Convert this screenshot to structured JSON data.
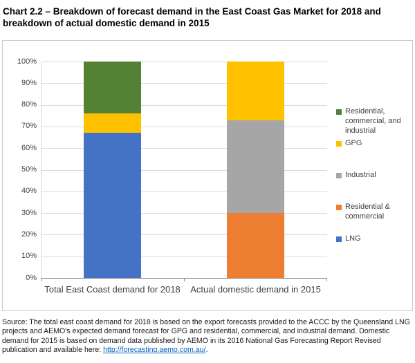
{
  "title": "Chart 2.2 – Breakdown of forecast demand in the East Coast Gas Market for 2018 and breakdown of actual domestic demand in 2015",
  "chart_data": {
    "type": "bar",
    "subtype": "stacked-100",
    "categories": [
      "Total East Coast demand for 2018",
      "Actual domestic demand in 2015"
    ],
    "series": [
      {
        "name": "LNG",
        "color": "#4472C4",
        "values": [
          67,
          0
        ]
      },
      {
        "name": "Residential & commercial",
        "color": "#ED7D31",
        "values": [
          0,
          30
        ]
      },
      {
        "name": "Industrial",
        "color": "#A6A6A6",
        "values": [
          0,
          43
        ]
      },
      {
        "name": "GPG",
        "color": "#FFC000",
        "values": [
          9,
          27
        ]
      },
      {
        "name": "Residential, commercial, and industrial",
        "color": "#548235",
        "values": [
          24,
          0
        ]
      }
    ],
    "ylim": [
      0,
      100
    ],
    "ytick_labels": [
      "100%",
      "90%",
      "80%",
      "70%",
      "60%",
      "50%",
      "40%",
      "30%",
      "20%",
      "10%",
      "0%"
    ],
    "grid": "horizontal",
    "legend_position": "right",
    "legend": [
      {
        "label": "Residential, commercial, and industrial",
        "color": "#548235"
      },
      {
        "label": "GPG",
        "color": "#FFC000"
      },
      {
        "label": "Industrial",
        "color": "#A6A6A6"
      },
      {
        "label": "Residential & commercial",
        "color": "#ED7D31"
      },
      {
        "label": "LNG",
        "color": "#4472C4"
      }
    ]
  },
  "source": {
    "prefix": "Source: The total east coast demand for 2018 is based on the export forecasts provided to the ACCC by the Queensland LNG projects and AEMO's expected demand forecast for GPG and residential, commercial, and industrial demand. Domestic demand for 2015 is based on demand data published by AEMO in its 2016 National Gas Forecasting Report Revised publication and available here: ",
    "link_text": "http://forecasting.aemo.com.au/",
    "link_suffix": "."
  }
}
